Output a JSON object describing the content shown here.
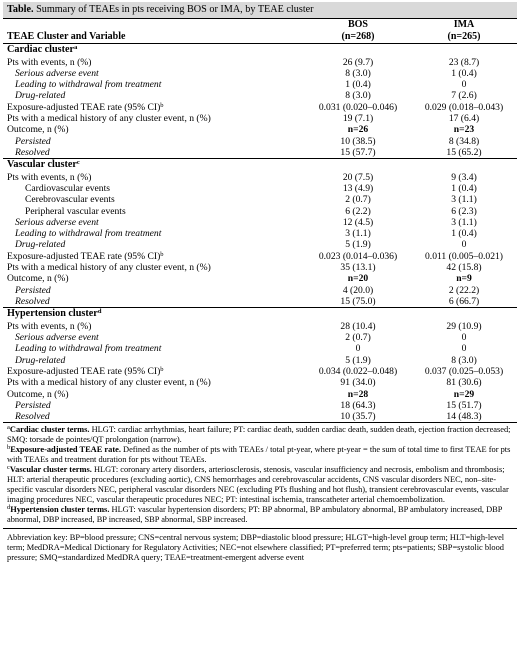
{
  "title": {
    "label": "Table.",
    "text": "Summary of TEAEs in pts receiving BOS or IMA, by TEAE cluster"
  },
  "header": {
    "col1": "TEAE Cluster and Variable",
    "bos_name": "BOS",
    "bos_n": "(n=268)",
    "ima_name": "IMA",
    "ima_n": "(n=265)"
  },
  "clusters": [
    {
      "name": "Cardiac cluster",
      "sup": "a",
      "rows": [
        {
          "label": "Pts with events, n (%)",
          "style": "plain",
          "bos": "26 (9.7)",
          "ima": "23 (8.7)"
        },
        {
          "label": "Serious adverse event",
          "style": "italic",
          "bos": "8 (3.0)",
          "ima": "1 (0.4)"
        },
        {
          "label": "Leading to withdrawal from treatment",
          "style": "italic",
          "bos": "1 (0.4)",
          "ima": "0"
        },
        {
          "label": "Drug-related",
          "style": "italic",
          "bos": "8 (3.0)",
          "ima": "7 (2.6)"
        },
        {
          "label": "Exposure-adjusted TEAE rate (95% CI)",
          "sup": "b",
          "style": "plain",
          "bos": "0.031 (0.020–0.046)",
          "ima": "0.029 (0.018–0.043)"
        },
        {
          "label": "Pts with a medical history of any cluster event, n (%)",
          "style": "plain",
          "bos": "19 (7.1)",
          "ima": "17 (6.4)"
        },
        {
          "label": "Outcome, n (%)",
          "style": "plain",
          "bos": "n=26",
          "ima": "n=23",
          "boldval": true
        },
        {
          "label": "Persisted",
          "style": "italic",
          "bos": "10 (38.5)",
          "ima": "8 (34.8)"
        },
        {
          "label": "Resolved",
          "style": "italic",
          "bos": "15 (57.7)",
          "ima": "15 (65.2)"
        }
      ]
    },
    {
      "name": "Vascular cluster",
      "sup": "c",
      "rows": [
        {
          "label": "Pts with events, n (%)",
          "style": "plain",
          "bos": "20 (7.5)",
          "ima": "9 (3.4)"
        },
        {
          "label": "Cardiovascular events",
          "style": "sub",
          "bos": "13 (4.9)",
          "ima": "1 (0.4)"
        },
        {
          "label": "Cerebrovascular events",
          "style": "sub",
          "bos": "2 (0.7)",
          "ima": "3 (1.1)"
        },
        {
          "label": "Peripheral vascular events",
          "style": "sub",
          "bos": "6 (2.2)",
          "ima": "6 (2.3)"
        },
        {
          "label": "Serious adverse event",
          "style": "italic",
          "bos": "12 (4.5)",
          "ima": "3 (1.1)"
        },
        {
          "label": "Leading to withdrawal from treatment",
          "style": "italic",
          "bos": "3 (1.1)",
          "ima": "1 (0.4)"
        },
        {
          "label": "Drug-related",
          "style": "italic",
          "bos": "5 (1.9)",
          "ima": "0"
        },
        {
          "label": "Exposure-adjusted TEAE rate (95% CI)",
          "sup": "b",
          "style": "plain",
          "bos": "0.023 (0.014–0.036)",
          "ima": "0.011 (0.005–0.021)"
        },
        {
          "label": "Pts with a medical history of any cluster event, n (%)",
          "style": "plain",
          "bos": "35 (13.1)",
          "ima": "42 (15.8)"
        },
        {
          "label": "Outcome, n (%)",
          "style": "plain",
          "bos": "n=20",
          "ima": "n=9",
          "boldval": true
        },
        {
          "label": "Persisted",
          "style": "italic",
          "bos": "4 (20.0)",
          "ima": "2 (22.2)"
        },
        {
          "label": "Resolved",
          "style": "italic",
          "bos": "15 (75.0)",
          "ima": "6 (66.7)"
        }
      ]
    },
    {
      "name": "Hypertension cluster",
      "sup": "d",
      "rows": [
        {
          "label": "Pts with events, n (%)",
          "style": "plain",
          "bos": "28 (10.4)",
          "ima": "29 (10.9)"
        },
        {
          "label": "Serious adverse event",
          "style": "italic",
          "bos": "2 (0.7)",
          "ima": "0"
        },
        {
          "label": "Leading to withdrawal from treatment",
          "style": "italic",
          "bos": "0",
          "ima": "0"
        },
        {
          "label": "Drug-related",
          "style": "italic",
          "bos": "5 (1.9)",
          "ima": "8 (3.0)"
        },
        {
          "label": "Exposure-adjusted TEAE rate (95% CI)",
          "sup": "b",
          "style": "plain",
          "bos": "0.034 (0.022–0.048)",
          "ima": "0.037 (0.025–0.053)"
        },
        {
          "label": "Pts with a medical history of any cluster event, n (%)",
          "style": "plain",
          "bos": "91 (34.0)",
          "ima": "81 (30.6)"
        },
        {
          "label": "Outcome, n (%)",
          "style": "plain",
          "bos": "n=28",
          "ima": "n=29",
          "boldval": true
        },
        {
          "label": "Persisted",
          "style": "italic",
          "bos": "18 (64.3)",
          "ima": "15 (51.7)"
        },
        {
          "label": "Resolved",
          "style": "italic",
          "bos": "10 (35.7)",
          "ima": "14 (48.3)"
        }
      ]
    }
  ],
  "footnotes": [
    {
      "sup": "a",
      "label": "Cardiac cluster terms.",
      "text": " HLGT: cardiac arrhythmias, heart failure; PT: cardiac death, sudden cardiac death, sudden death, ejection fraction decreased; SMQ: torsade de pointes/QT prolongation (narrow)."
    },
    {
      "sup": "b",
      "label": "Exposure-adjusted TEAE rate.",
      "text": " Defined as the number of pts with TEAEs / total pt-year, where pt-year = the sum of total time to first TEAE for pts with TEAEs and treatment duration for pts without TEAEs."
    },
    {
      "sup": "c",
      "label": "Vascular cluster terms.",
      "text": " HLGT: coronary artery disorders, arteriosclerosis, stenosis, vascular insufficiency and necrosis, embolism and thrombosis; HLT: arterial therapeutic procedures (excluding aortic), CNS hemorrhages and cerebrovascular accidents, CNS vascular disorders NEC, non–site-specific vascular disorders NEC, peripheral vascular disorders NEC (excluding PTs flushing and hot flush), transient cerebrovascular events, vascular imaging procedures NEC, vascular therapeutic procedures NEC; PT: intestinal ischemia, transcatheter arterial chemoembolization."
    },
    {
      "sup": "d",
      "label": "Hypertension cluster terms.",
      "text": " HLGT: vascular hypertension disorders; PT: BP abnormal, BP ambulatory abnormal, BP ambulatory increased, DBP abnormal, DBP increased, BP increased, SBP abnormal, SBP increased."
    }
  ],
  "abbreviations": "Abbreviation key: BP=blood pressure; CNS=central nervous system; DBP=diastolic blood pressure; HLGT=high-level group term; HLT=high-level term; MedDRA=Medical Dictionary for Regulatory Activities; NEC=not elsewhere classified; PT=preferred term; pts=patients; SBP=systolic blood pressure; SMQ=standardized MedDRA query; TEAE=treatment-emergent adverse event"
}
